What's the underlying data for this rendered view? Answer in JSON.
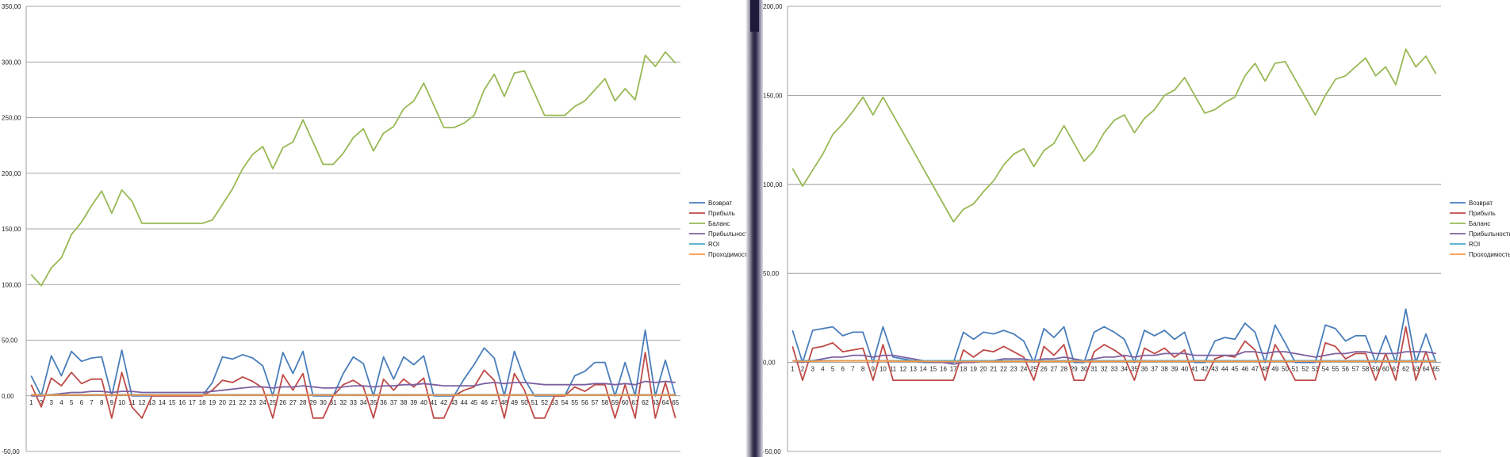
{
  "chart_data": [
    {
      "type": "line",
      "ylim": [
        -50,
        350
      ],
      "yticks": [
        "-50,00",
        "0,00",
        "50,00",
        "100,00",
        "150,00",
        "200,00",
        "250,00",
        "300,00",
        "350,00"
      ],
      "ytick_values": [
        -50,
        0,
        50,
        100,
        150,
        200,
        250,
        300,
        350
      ],
      "categories": [
        "1",
        "2",
        "3",
        "4",
        "5",
        "6",
        "7",
        "8",
        "9",
        "10",
        "11",
        "12",
        "13",
        "14",
        "15",
        "16",
        "17",
        "18",
        "19",
        "20",
        "21",
        "22",
        "23",
        "24",
        "25",
        "26",
        "27",
        "28",
        "29",
        "30",
        "31",
        "32",
        "33",
        "34",
        "35",
        "36",
        "37",
        "38",
        "39",
        "40",
        "41",
        "42",
        "43",
        "44",
        "45",
        "46",
        "47",
        "48",
        "49",
        "50",
        "51",
        "52",
        "53",
        "54",
        "55",
        "56",
        "57",
        "58",
        "59",
        "60",
        "61",
        "62",
        "63",
        "64",
        "65"
      ],
      "grid": true,
      "legend_position": "right",
      "series": [
        {
          "name": "Возврат",
          "color": "#4a7ebb",
          "values": [
            18,
            0,
            36,
            18,
            40,
            31,
            34,
            35,
            0,
            41,
            0,
            0,
            0,
            0,
            0,
            0,
            0,
            0,
            12,
            35,
            33,
            37,
            34,
            27,
            0,
            39,
            20,
            40,
            0,
            0,
            0,
            20,
            35,
            29,
            0,
            35,
            15,
            35,
            28,
            36,
            0,
            0,
            0,
            15,
            28,
            43,
            34,
            0,
            40,
            15,
            0,
            0,
            0,
            0,
            18,
            22,
            30,
            30,
            0,
            30,
            0,
            59,
            0,
            32,
            0
          ]
        },
        {
          "name": "Прибыль",
          "color": "#be4b48",
          "values": [
            10,
            -10,
            16,
            9,
            21,
            11,
            15,
            15,
            -20,
            21,
            -10,
            -20,
            0,
            0,
            0,
            0,
            0,
            0,
            5,
            14,
            12,
            17,
            13,
            7,
            -20,
            19,
            5,
            20,
            -20,
            -20,
            0,
            10,
            14,
            8,
            -20,
            15,
            5,
            15,
            8,
            16,
            -20,
            -20,
            0,
            5,
            8,
            23,
            14,
            -20,
            20,
            5,
            -20,
            -20,
            0,
            0,
            8,
            4,
            10,
            10,
            -20,
            10,
            -20,
            39,
            -20,
            12,
            -20
          ]
        },
        {
          "name": "Баланс",
          "color": "#98b954",
          "values": [
            109,
            99,
            115,
            124,
            145,
            156,
            171,
            184,
            164,
            185,
            175,
            155,
            155,
            155,
            155,
            155,
            155,
            155,
            158,
            172,
            186,
            204,
            217,
            224,
            204,
            223,
            228,
            248,
            228,
            208,
            208,
            218,
            232,
            240,
            220,
            236,
            242,
            258,
            265,
            281,
            261,
            241,
            241,
            245,
            252,
            275,
            289,
            269,
            290,
            292,
            272,
            252,
            252,
            252,
            260,
            265,
            275,
            285,
            265,
            276,
            266,
            306,
            296,
            309,
            299
          ]
        },
        {
          "name": "Прибыльность",
          "color": "#7d60a0",
          "values": [
            0,
            0,
            1,
            2,
            3,
            3,
            4,
            4,
            3,
            4,
            4,
            3,
            3,
            3,
            3,
            3,
            3,
            3,
            4,
            5,
            6,
            7,
            8,
            8,
            7,
            8,
            8,
            9,
            8,
            7,
            7,
            8,
            9,
            9,
            8,
            9,
            9,
            10,
            10,
            11,
            10,
            9,
            9,
            9,
            9,
            11,
            12,
            11,
            12,
            12,
            11,
            10,
            10,
            10,
            10,
            10,
            11,
            11,
            10,
            11,
            10,
            13,
            12,
            13,
            12
          ]
        },
        {
          "name": "ROI",
          "color": "#4bacc6",
          "values": [
            1,
            1,
            1,
            1,
            1,
            1,
            1,
            1,
            1,
            1,
            1,
            1,
            1,
            1,
            1,
            1,
            1,
            1,
            1,
            1,
            1,
            1,
            1,
            1,
            1,
            1,
            1,
            1,
            1,
            1,
            1,
            1,
            1,
            1,
            1,
            1,
            1,
            1,
            1,
            1,
            1,
            1,
            1,
            1,
            1,
            1,
            1,
            1,
            1,
            1,
            1,
            1,
            1,
            1,
            1,
            1,
            1,
            1,
            1,
            1,
            1,
            1,
            1,
            1,
            1
          ]
        },
        {
          "name": "Проходимость",
          "color": "#f79646",
          "values": [
            1,
            0.5,
            0.7,
            0.75,
            0.8,
            0.83,
            0.86,
            0.88,
            0.78,
            0.8,
            0.73,
            0.67,
            0.67,
            0.67,
            0.67,
            0.67,
            0.67,
            0.67,
            0.68,
            0.7,
            0.71,
            0.73,
            0.74,
            0.75,
            0.72,
            0.73,
            0.74,
            0.75,
            0.72,
            0.7,
            0.7,
            0.7,
            0.71,
            0.72,
            0.7,
            0.71,
            0.71,
            0.72,
            0.72,
            0.73,
            0.71,
            0.7,
            0.7,
            0.7,
            0.7,
            0.71,
            0.72,
            0.7,
            0.71,
            0.71,
            0.7,
            0.69,
            0.69,
            0.69,
            0.69,
            0.69,
            0.7,
            0.7,
            0.69,
            0.69,
            0.68,
            0.69,
            0.68,
            0.69,
            0.68
          ]
        }
      ]
    },
    {
      "type": "line",
      "ylim": [
        -50,
        200
      ],
      "yticks": [
        "-50,00",
        "0,00",
        "50,00",
        "100,00",
        "150,00",
        "200,00"
      ],
      "ytick_values": [
        -50,
        0,
        50,
        100,
        150,
        200
      ],
      "categories": [
        "1",
        "2",
        "3",
        "4",
        "5",
        "6",
        "7",
        "8",
        "9",
        "10",
        "11",
        "12",
        "13",
        "14",
        "15",
        "16",
        "17",
        "18",
        "19",
        "20",
        "21",
        "22",
        "23",
        "24",
        "25",
        "26",
        "27",
        "28",
        "29",
        "30",
        "31",
        "32",
        "33",
        "34",
        "35",
        "36",
        "37",
        "38",
        "39",
        "40",
        "41",
        "42",
        "43",
        "44",
        "45",
        "46",
        "47",
        "48",
        "49",
        "50",
        "51",
        "52",
        "53",
        "54",
        "55",
        "56",
        "57",
        "58",
        "59",
        "60",
        "61",
        "62",
        "63",
        "64",
        "65"
      ],
      "grid": true,
      "legend_position": "right",
      "series": [
        {
          "name": "Возврат",
          "color": "#4a7ebb",
          "values": [
            18,
            0,
            18,
            19,
            20,
            15,
            17,
            17,
            0,
            20,
            3,
            2,
            1,
            0,
            0,
            0,
            0,
            17,
            13,
            17,
            16,
            18,
            16,
            12,
            0,
            19,
            14,
            20,
            0,
            0,
            17,
            20,
            17,
            13,
            0,
            18,
            15,
            18,
            13,
            17,
            0,
            0,
            12,
            14,
            13,
            22,
            17,
            0,
            21,
            11,
            0,
            0,
            0,
            21,
            19,
            12,
            15,
            15,
            0,
            15,
            0,
            30,
            0,
            16,
            0
          ]
        },
        {
          "name": "Прибыль",
          "color": "#be4b48",
          "values": [
            9,
            -10,
            8,
            9,
            11,
            6,
            7,
            8,
            -10,
            10,
            -10,
            -10,
            -10,
            -10,
            -10,
            -10,
            -10,
            7,
            3,
            7,
            6,
            9,
            6,
            3,
            -10,
            9,
            4,
            10,
            -10,
            -10,
            6,
            10,
            7,
            3,
            -10,
            8,
            5,
            8,
            3,
            7,
            -10,
            -10,
            2,
            4,
            3,
            12,
            7,
            -10,
            10,
            1,
            -10,
            -10,
            -10,
            11,
            9,
            2,
            5,
            5,
            -10,
            5,
            -10,
            20,
            -10,
            6,
            -10
          ]
        },
        {
          "name": "Баланс",
          "color": "#98b954",
          "values": [
            109,
            99,
            108,
            117,
            128,
            134,
            141,
            149,
            139,
            149,
            139,
            129,
            119,
            109,
            99,
            89,
            79,
            86,
            89,
            96,
            102,
            111,
            117,
            120,
            110,
            119,
            123,
            133,
            123,
            113,
            119,
            129,
            136,
            139,
            129,
            137,
            142,
            150,
            153,
            160,
            150,
            140,
            142,
            146,
            149,
            161,
            168,
            158,
            168,
            169,
            159,
            149,
            139,
            150,
            159,
            161,
            166,
            171,
            161,
            166,
            156,
            176,
            166,
            172,
            162
          ]
        },
        {
          "name": "Прибыльность",
          "color": "#7d60a0",
          "values": [
            1,
            0,
            1,
            2,
            3,
            3,
            4,
            4,
            3,
            4,
            4,
            3,
            2,
            1,
            0,
            0,
            -1,
            0,
            0,
            1,
            1,
            2,
            2,
            2,
            1,
            2,
            2,
            3,
            2,
            1,
            2,
            3,
            3,
            4,
            3,
            4,
            4,
            5,
            5,
            5,
            4,
            4,
            4,
            4,
            4,
            6,
            6,
            5,
            6,
            6,
            5,
            4,
            3,
            4,
            5,
            5,
            6,
            6,
            5,
            5,
            5,
            6,
            6,
            6,
            5
          ]
        },
        {
          "name": "ROI",
          "color": "#4bacc6",
          "values": [
            1,
            1,
            1,
            1,
            1,
            1,
            1,
            1,
            1,
            1,
            1,
            1,
            1,
            1,
            1,
            1,
            1,
            1,
            1,
            1,
            1,
            1,
            1,
            1,
            1,
            1,
            1,
            1,
            1,
            1,
            1,
            1,
            1,
            1,
            1,
            1,
            1,
            1,
            1,
            1,
            1,
            1,
            1,
            1,
            1,
            1,
            1,
            1,
            1,
            1,
            1,
            1,
            1,
            1,
            1,
            1,
            1,
            1,
            1,
            1,
            1,
            1,
            1,
            1,
            1
          ]
        },
        {
          "name": "Проходимость",
          "color": "#f79646",
          "values": [
            1,
            0.5,
            0.67,
            0.75,
            0.8,
            0.83,
            0.86,
            0.88,
            0.78,
            0.8,
            0.73,
            0.67,
            0.62,
            0.57,
            0.53,
            0.5,
            0.47,
            0.5,
            0.53,
            0.55,
            0.57,
            0.59,
            0.61,
            0.63,
            0.6,
            0.62,
            0.63,
            0.64,
            0.62,
            0.6,
            0.61,
            0.63,
            0.64,
            0.65,
            0.63,
            0.64,
            0.65,
            0.66,
            0.67,
            0.68,
            0.66,
            0.64,
            0.65,
            0.66,
            0.67,
            0.67,
            0.68,
            0.67,
            0.67,
            0.68,
            0.67,
            0.65,
            0.64,
            0.65,
            0.65,
            0.66,
            0.67,
            0.67,
            0.66,
            0.67,
            0.66,
            0.66,
            0.65,
            0.66,
            0.65
          ]
        }
      ]
    }
  ]
}
